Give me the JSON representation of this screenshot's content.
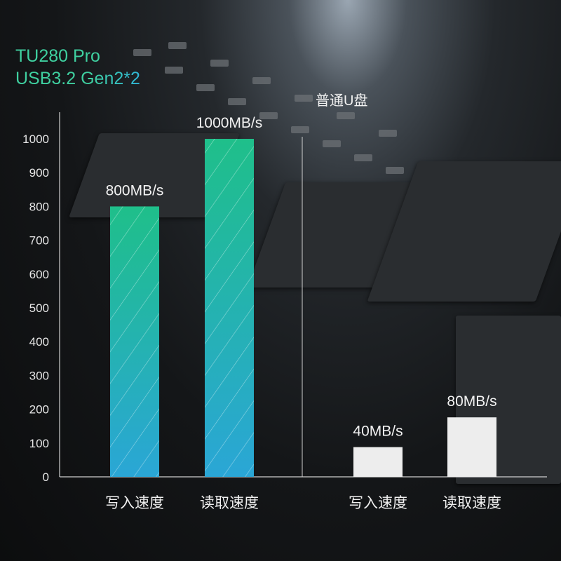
{
  "title": "TU280 Pro",
  "subtitle": "USB3.2 Gen2*2",
  "colors": {
    "bar_gradient_top": "#1fbf8a",
    "bar_gradient_bottom": "#2aa6d6",
    "comparison_bar": "#ededed",
    "title": "#3fd0a0"
  },
  "chart_data": {
    "type": "bar",
    "ylim": [
      0,
      1000
    ],
    "yticks": [
      0,
      100,
      200,
      300,
      400,
      500,
      600,
      700,
      800,
      900,
      1000
    ],
    "grid": false,
    "groups": [
      {
        "name": "",
        "categories": [
          "写入速度",
          "读取速度"
        ],
        "values": [
          800,
          1000
        ],
        "labels": [
          "800MB/s",
          "1000MB/s"
        ]
      },
      {
        "name": "普通U盘",
        "categories": [
          "写入速度",
          "读取速度"
        ],
        "values": [
          40,
          80
        ],
        "labels": [
          "40MB/s",
          "80MB/s"
        ]
      }
    ]
  }
}
